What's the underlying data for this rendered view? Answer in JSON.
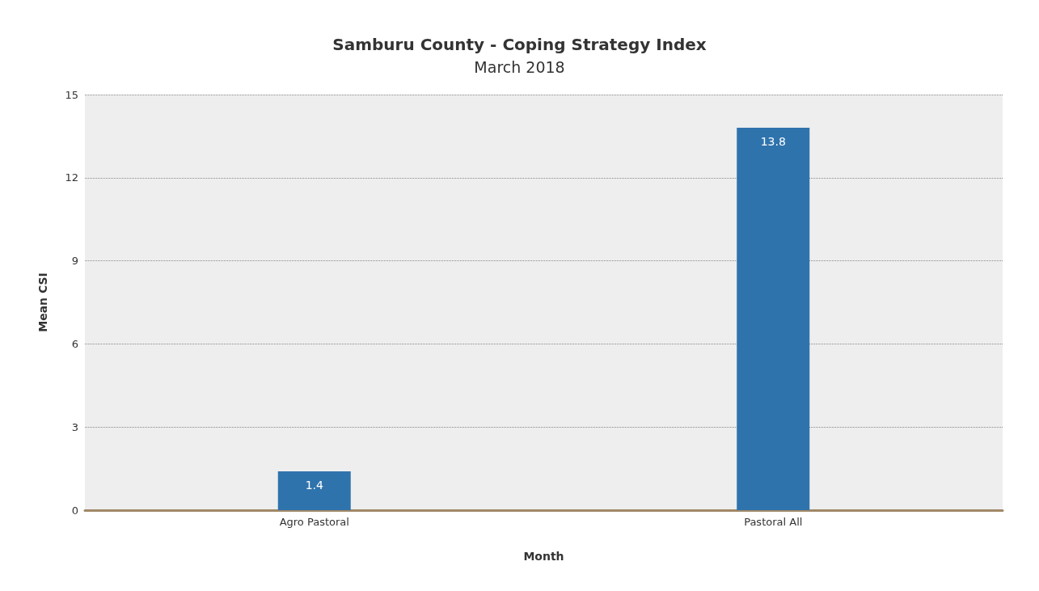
{
  "chart_data": {
    "type": "bar",
    "title": "Samburu County - Coping Strategy Index",
    "subtitle": "March 2018",
    "xlabel": "Month",
    "ylabel": "Mean CSI",
    "categories": [
      "Agro Pastoral",
      "Pastoral All"
    ],
    "values": [
      1.4,
      13.8
    ],
    "color": "#2f73ad",
    "ylim": [
      0,
      15
    ],
    "yticks": [
      0,
      3,
      6,
      9,
      12,
      15
    ],
    "grid": "y",
    "data_labels": true
  }
}
